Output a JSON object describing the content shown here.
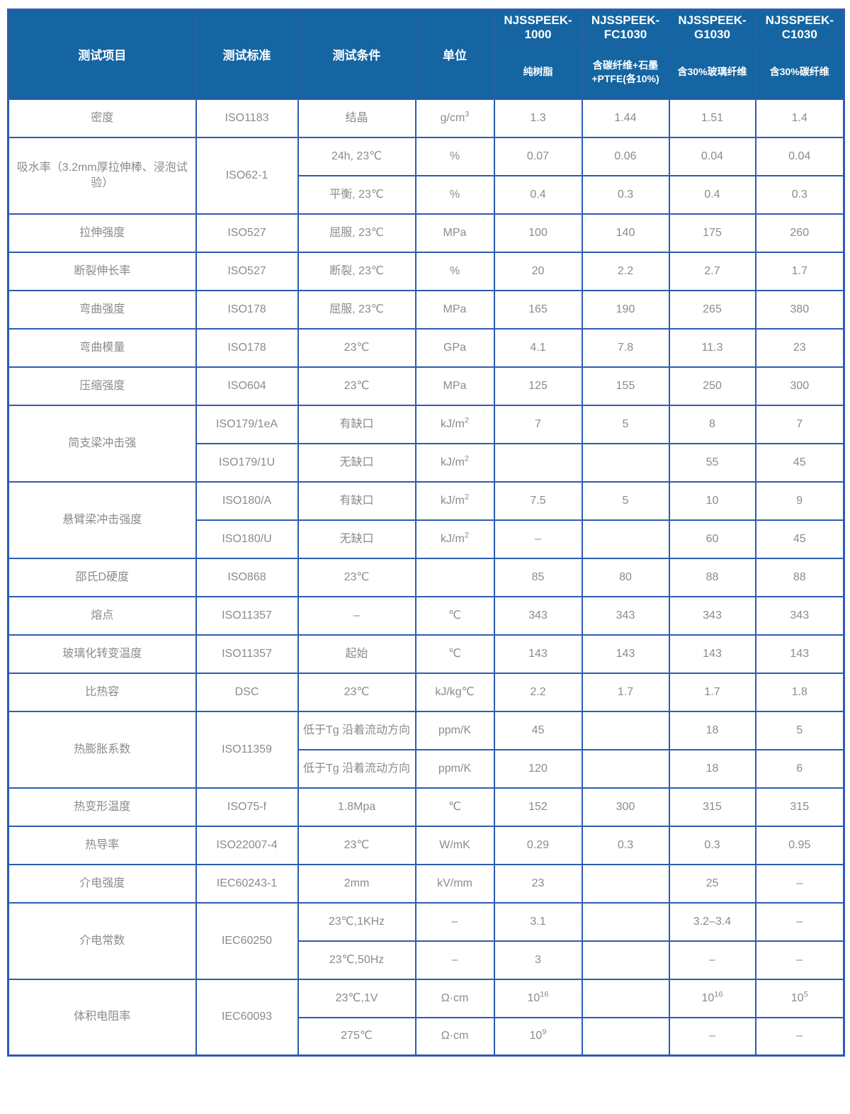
{
  "colors": {
    "header_bg": "#1565a2",
    "border": "#2d5cae",
    "cell_text": "#8b8b8d",
    "header_text": "#ffffff"
  },
  "table": {
    "header": {
      "col_item": "测试项目",
      "col_standard": "测试标准",
      "col_condition": "测试条件",
      "col_unit": "单位",
      "products": [
        {
          "name": "NJSSPEEK-1000",
          "desc": "纯树脂"
        },
        {
          "name": "NJSSPEEK-FC1030",
          "desc": "含碳纤维+石墨+PTFE(各10%)"
        },
        {
          "name": "NJSSPEEK-G1030",
          "desc": "含30%玻璃纤维"
        },
        {
          "name": "NJSSPEEK-C1030",
          "desc": "含30%碳纤维"
        }
      ]
    },
    "rows": [
      {
        "cells": [
          {
            "t": "密度"
          },
          {
            "t": "ISO1183"
          },
          {
            "t": "结晶"
          },
          {
            "t": "g/cm^3"
          },
          {
            "t": "1.3"
          },
          {
            "t": "1.44"
          },
          {
            "t": "1.51"
          },
          {
            "t": "1.4"
          }
        ]
      },
      {
        "cells": [
          {
            "t": "吸水率（3.2mm厚拉伸棒、浸泡试验）",
            "rs": 2
          },
          {
            "t": "ISO62-1",
            "rs": 2
          },
          {
            "t": "24h, 23℃"
          },
          {
            "t": "%"
          },
          {
            "t": "0.07"
          },
          {
            "t": "0.06"
          },
          {
            "t": "0.04"
          },
          {
            "t": "0.04"
          }
        ]
      },
      {
        "cells": [
          {
            "t": "平衡, 23℃"
          },
          {
            "t": "%"
          },
          {
            "t": "0.4"
          },
          {
            "t": "0.3"
          },
          {
            "t": "0.4"
          },
          {
            "t": "0.3"
          }
        ]
      },
      {
        "cells": [
          {
            "t": "拉伸强度"
          },
          {
            "t": "ISO527"
          },
          {
            "t": "屈服, 23℃"
          },
          {
            "t": "MPa"
          },
          {
            "t": "100"
          },
          {
            "t": "140"
          },
          {
            "t": "175"
          },
          {
            "t": "260"
          }
        ]
      },
      {
        "cells": [
          {
            "t": "断裂伸长率"
          },
          {
            "t": "ISO527"
          },
          {
            "t": "断裂, 23℃"
          },
          {
            "t": "%"
          },
          {
            "t": "20"
          },
          {
            "t": "2.2"
          },
          {
            "t": "2.7"
          },
          {
            "t": "1.7"
          }
        ]
      },
      {
        "cells": [
          {
            "t": "弯曲强度"
          },
          {
            "t": "ISO178"
          },
          {
            "t": "屈服, 23℃"
          },
          {
            "t": "MPa"
          },
          {
            "t": "165"
          },
          {
            "t": "190"
          },
          {
            "t": "265"
          },
          {
            "t": "380"
          }
        ]
      },
      {
        "cells": [
          {
            "t": "弯曲模量"
          },
          {
            "t": "ISO178"
          },
          {
            "t": "23℃"
          },
          {
            "t": "GPa"
          },
          {
            "t": "4.1"
          },
          {
            "t": "7.8"
          },
          {
            "t": "11.3"
          },
          {
            "t": "23"
          }
        ]
      },
      {
        "cells": [
          {
            "t": "压缩强度"
          },
          {
            "t": "ISO604"
          },
          {
            "t": "23℃"
          },
          {
            "t": "MPa"
          },
          {
            "t": "125"
          },
          {
            "t": "155"
          },
          {
            "t": "250"
          },
          {
            "t": "300"
          }
        ]
      },
      {
        "cells": [
          {
            "t": "简支梁冲击强",
            "rs": 2
          },
          {
            "t": "ISO179/1eA"
          },
          {
            "t": "有缺口"
          },
          {
            "t": "kJ/m^2"
          },
          {
            "t": "7"
          },
          {
            "t": "5"
          },
          {
            "t": "8"
          },
          {
            "t": "7"
          }
        ]
      },
      {
        "cells": [
          {
            "t": "ISO179/1U"
          },
          {
            "t": "无缺口"
          },
          {
            "t": "kJ/m^2"
          },
          {
            "t": ""
          },
          {
            "t": ""
          },
          {
            "t": "55"
          },
          {
            "t": "45"
          }
        ]
      },
      {
        "cells": [
          {
            "t": "悬臂梁冲击强度",
            "rs": 2
          },
          {
            "t": "ISO180/A"
          },
          {
            "t": "有缺口"
          },
          {
            "t": "kJ/m^2"
          },
          {
            "t": "7.5"
          },
          {
            "t": "5"
          },
          {
            "t": "10"
          },
          {
            "t": "9"
          }
        ]
      },
      {
        "cells": [
          {
            "t": "ISO180/U"
          },
          {
            "t": "无缺口"
          },
          {
            "t": "kJ/m^2"
          },
          {
            "t": "–"
          },
          {
            "t": ""
          },
          {
            "t": "60"
          },
          {
            "t": "45"
          }
        ]
      },
      {
        "cells": [
          {
            "t": "邵氏D硬度"
          },
          {
            "t": "ISO868"
          },
          {
            "t": "23℃"
          },
          {
            "t": ""
          },
          {
            "t": "85"
          },
          {
            "t": "80"
          },
          {
            "t": "88"
          },
          {
            "t": "88"
          }
        ]
      },
      {
        "cells": [
          {
            "t": "熔点"
          },
          {
            "t": "ISO11357"
          },
          {
            "t": "–"
          },
          {
            "t": "℃"
          },
          {
            "t": "343"
          },
          {
            "t": "343"
          },
          {
            "t": "343"
          },
          {
            "t": "343"
          }
        ]
      },
      {
        "cells": [
          {
            "t": "玻璃化转变温度"
          },
          {
            "t": "ISO11357"
          },
          {
            "t": "起始"
          },
          {
            "t": "℃"
          },
          {
            "t": "143"
          },
          {
            "t": "143"
          },
          {
            "t": "143"
          },
          {
            "t": "143"
          }
        ]
      },
      {
        "cells": [
          {
            "t": "比热容"
          },
          {
            "t": "DSC"
          },
          {
            "t": "23℃"
          },
          {
            "t": "kJ/kg℃"
          },
          {
            "t": "2.2"
          },
          {
            "t": "1.7"
          },
          {
            "t": "1.7"
          },
          {
            "t": "1.8"
          }
        ]
      },
      {
        "cells": [
          {
            "t": "热膨胀系数",
            "rs": 2
          },
          {
            "t": "ISO11359",
            "rs": 2
          },
          {
            "t": "低于Tg 沿着流动方向"
          },
          {
            "t": "ppm/K"
          },
          {
            "t": "45"
          },
          {
            "t": ""
          },
          {
            "t": "18"
          },
          {
            "t": "5"
          }
        ]
      },
      {
        "cells": [
          {
            "t": "低于Tg 沿着流动方向"
          },
          {
            "t": "ppm/K"
          },
          {
            "t": "120"
          },
          {
            "t": ""
          },
          {
            "t": "18"
          },
          {
            "t": "6"
          }
        ]
      },
      {
        "cells": [
          {
            "t": "热变形温度"
          },
          {
            "t": "ISO75-f"
          },
          {
            "t": "1.8Mpa"
          },
          {
            "t": "℃"
          },
          {
            "t": "152"
          },
          {
            "t": "300"
          },
          {
            "t": "315"
          },
          {
            "t": "315"
          }
        ]
      },
      {
        "cells": [
          {
            "t": "热导率"
          },
          {
            "t": "ISO22007-4"
          },
          {
            "t": "23℃"
          },
          {
            "t": "W/mK"
          },
          {
            "t": "0.29"
          },
          {
            "t": "0.3"
          },
          {
            "t": "0.3"
          },
          {
            "t": "0.95"
          }
        ]
      },
      {
        "cells": [
          {
            "t": "介电强度"
          },
          {
            "t": "IEC60243-1"
          },
          {
            "t": "2mm"
          },
          {
            "t": "kV/mm"
          },
          {
            "t": "23"
          },
          {
            "t": ""
          },
          {
            "t": "25"
          },
          {
            "t": "–"
          }
        ]
      },
      {
        "cells": [
          {
            "t": "介电常数",
            "rs": 2
          },
          {
            "t": "IEC60250",
            "rs": 2
          },
          {
            "t": "23℃,1KHz"
          },
          {
            "t": "–"
          },
          {
            "t": "3.1"
          },
          {
            "t": ""
          },
          {
            "t": "3.2–3.4"
          },
          {
            "t": "–"
          }
        ]
      },
      {
        "cells": [
          {
            "t": "23℃,50Hz"
          },
          {
            "t": "–"
          },
          {
            "t": "3"
          },
          {
            "t": ""
          },
          {
            "t": "–"
          },
          {
            "t": "–"
          }
        ]
      },
      {
        "cells": [
          {
            "t": "体积电阻率",
            "rs": 2
          },
          {
            "t": "IEC60093",
            "rs": 2
          },
          {
            "t": "23℃,1V"
          },
          {
            "t": "Ω·cm"
          },
          {
            "t": "10^16"
          },
          {
            "t": ""
          },
          {
            "t": "10^16"
          },
          {
            "t": "10^5"
          }
        ]
      },
      {
        "cells": [
          {
            "t": "275℃"
          },
          {
            "t": "Ω·cm"
          },
          {
            "t": "10^9"
          },
          {
            "t": ""
          },
          {
            "t": "–"
          },
          {
            "t": "–"
          }
        ]
      }
    ]
  }
}
